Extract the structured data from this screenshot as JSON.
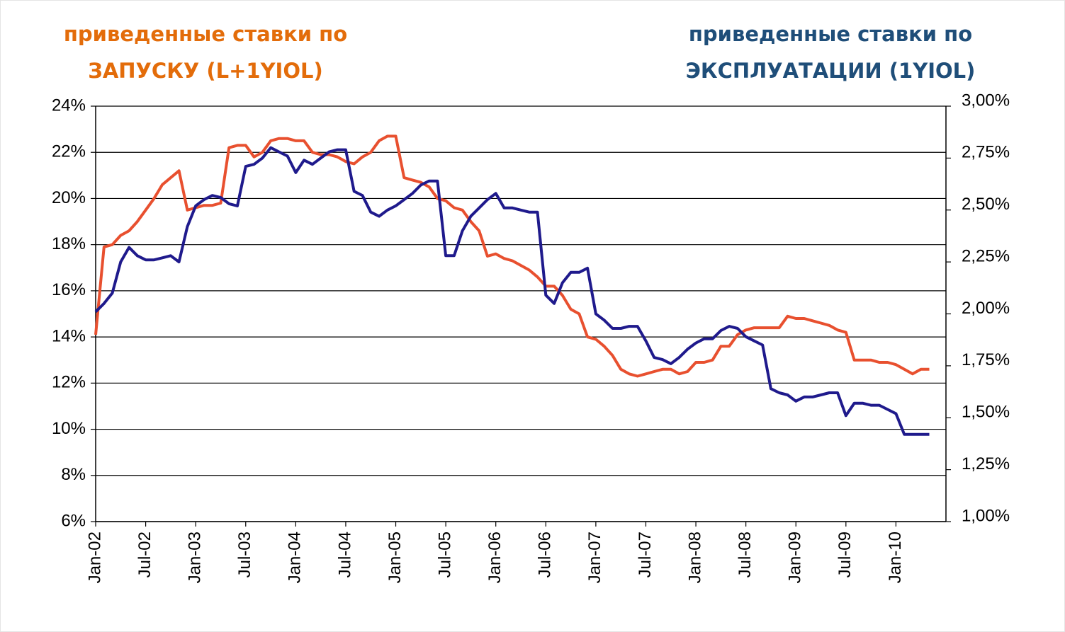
{
  "chart_data": {
    "type": "line",
    "x": [
      "2002-01",
      "2002-02",
      "2002-03",
      "2002-04",
      "2002-05",
      "2002-06",
      "2002-07",
      "2002-08",
      "2002-09",
      "2002-10",
      "2002-11",
      "2002-12",
      "2003-01",
      "2003-02",
      "2003-03",
      "2003-04",
      "2003-05",
      "2003-06",
      "2003-07",
      "2003-08",
      "2003-09",
      "2003-10",
      "2003-11",
      "2003-12",
      "2004-01",
      "2004-02",
      "2004-03",
      "2004-04",
      "2004-05",
      "2004-06",
      "2004-07",
      "2004-08",
      "2004-09",
      "2004-10",
      "2004-11",
      "2004-12",
      "2005-01",
      "2005-02",
      "2005-03",
      "2005-04",
      "2005-05",
      "2005-06",
      "2005-07",
      "2005-08",
      "2005-09",
      "2005-10",
      "2005-11",
      "2005-12",
      "2006-01",
      "2006-02",
      "2006-03",
      "2006-04",
      "2006-05",
      "2006-06",
      "2006-07",
      "2006-08",
      "2006-09",
      "2006-10",
      "2006-11",
      "2006-12",
      "2007-01",
      "2007-02",
      "2007-03",
      "2007-04",
      "2007-05",
      "2007-06",
      "2007-07",
      "2007-08",
      "2007-09",
      "2007-10",
      "2007-11",
      "2007-12",
      "2008-01",
      "2008-02",
      "2008-03",
      "2008-04",
      "2008-05",
      "2008-06",
      "2008-07",
      "2008-08",
      "2008-09",
      "2008-10",
      "2008-11",
      "2008-12",
      "2009-01",
      "2009-02",
      "2009-03",
      "2009-04",
      "2009-05",
      "2009-06",
      "2009-07",
      "2009-08",
      "2009-09",
      "2009-10",
      "2009-11",
      "2009-12",
      "2010-01",
      "2010-02",
      "2010-03",
      "2010-04",
      "2010-05"
    ],
    "series": [
      {
        "legend_lines": [
          "приведенные ставки по",
          "ЗАПУСКУ (L+1YIOL)"
        ],
        "color": "#e8502f",
        "title_color": "#e36c0a",
        "axis": "y",
        "values": [
          14.1,
          17.9,
          18.0,
          18.4,
          18.6,
          19.0,
          19.5,
          20.0,
          20.6,
          20.9,
          21.2,
          19.5,
          19.6,
          19.7,
          19.7,
          19.8,
          22.2,
          22.3,
          22.3,
          21.8,
          22.0,
          22.5,
          22.6,
          22.6,
          22.5,
          22.5,
          22.0,
          21.9,
          21.9,
          21.8,
          21.6,
          21.5,
          21.8,
          22.0,
          22.5,
          22.7,
          22.7,
          20.9,
          20.8,
          20.7,
          20.5,
          20.0,
          19.9,
          19.6,
          19.5,
          19.0,
          18.6,
          17.5,
          17.6,
          17.4,
          17.3,
          17.1,
          16.9,
          16.6,
          16.2,
          16.2,
          15.8,
          15.2,
          15.0,
          14.0,
          13.9,
          13.6,
          13.2,
          12.6,
          12.4,
          12.3,
          12.4,
          12.5,
          12.6,
          12.6,
          12.4,
          12.5,
          12.9,
          12.9,
          13.0,
          13.6,
          13.6,
          14.1,
          14.3,
          14.4,
          14.4,
          14.4,
          14.4,
          14.9,
          14.8,
          14.8,
          14.7,
          14.6,
          14.5,
          14.3,
          14.2,
          13.0,
          13.0,
          13.0,
          12.9,
          12.9,
          12.8,
          12.6,
          12.4,
          12.6,
          12.6
        ]
      },
      {
        "legend_lines": [
          "приведенные ставки по",
          "ЭКСПЛУАТАЦИИ (1YIOL)"
        ],
        "color": "#1f1a8c",
        "title_color": "#1f4e79",
        "axis": "y2",
        "values": [
          2.01,
          2.05,
          2.1,
          2.25,
          2.32,
          2.28,
          2.26,
          2.26,
          2.27,
          2.28,
          2.25,
          2.42,
          2.52,
          2.55,
          2.57,
          2.56,
          2.53,
          2.52,
          2.71,
          2.72,
          2.75,
          2.8,
          2.78,
          2.76,
          2.68,
          2.74,
          2.72,
          2.75,
          2.78,
          2.79,
          2.79,
          2.59,
          2.57,
          2.49,
          2.47,
          2.5,
          2.52,
          2.55,
          2.58,
          2.62,
          2.64,
          2.64,
          2.28,
          2.28,
          2.4,
          2.47,
          2.51,
          2.55,
          2.58,
          2.51,
          2.51,
          2.5,
          2.49,
          2.49,
          2.09,
          2.05,
          2.15,
          2.2,
          2.2,
          2.22,
          2.0,
          1.97,
          1.93,
          1.93,
          1.94,
          1.94,
          1.87,
          1.79,
          1.78,
          1.76,
          1.79,
          1.83,
          1.86,
          1.88,
          1.88,
          1.92,
          1.94,
          1.93,
          1.89,
          1.87,
          1.85,
          1.64,
          1.62,
          1.61,
          1.58,
          1.6,
          1.6,
          1.61,
          1.62,
          1.62,
          1.51,
          1.57,
          1.57,
          1.56,
          1.56,
          1.54,
          1.52,
          1.42,
          1.42,
          1.42,
          1.42
        ]
      }
    ],
    "xlim": [
      "2002-01",
      "2010-07"
    ],
    "xticks": [
      {
        "value": "2002-01",
        "label": "Jan-02"
      },
      {
        "value": "2002-07",
        "label": "Jul-02"
      },
      {
        "value": "2003-01",
        "label": "Jan-03"
      },
      {
        "value": "2003-07",
        "label": "Jul-03"
      },
      {
        "value": "2004-01",
        "label": "Jan-04"
      },
      {
        "value": "2004-07",
        "label": "Jul-04"
      },
      {
        "value": "2005-01",
        "label": "Jan-05"
      },
      {
        "value": "2005-07",
        "label": "Jul-05"
      },
      {
        "value": "2006-01",
        "label": "Jan-06"
      },
      {
        "value": "2006-07",
        "label": "Jul-06"
      },
      {
        "value": "2007-01",
        "label": "Jan-07"
      },
      {
        "value": "2007-07",
        "label": "Jul-07"
      },
      {
        "value": "2008-01",
        "label": "Jan-08"
      },
      {
        "value": "2008-07",
        "label": "Jul-08"
      },
      {
        "value": "2009-01",
        "label": "Jan-09"
      },
      {
        "value": "2009-07",
        "label": "Jul-09"
      },
      {
        "value": "2010-01",
        "label": "Jan-10"
      }
    ],
    "ylim": [
      6,
      24
    ],
    "yticks": [
      {
        "value": 6,
        "label": "6%"
      },
      {
        "value": 8,
        "label": "8%"
      },
      {
        "value": 10,
        "label": "10%"
      },
      {
        "value": 12,
        "label": "12%"
      },
      {
        "value": 14,
        "label": "14%"
      },
      {
        "value": 16,
        "label": "16%"
      },
      {
        "value": 18,
        "label": "18%"
      },
      {
        "value": 20,
        "label": "20%"
      },
      {
        "value": 22,
        "label": "22%"
      },
      {
        "value": 24,
        "label": "24%"
      }
    ],
    "y2lim": [
      1,
      3
    ],
    "y2ticks": [
      {
        "value": 1,
        "label": "1,00%"
      },
      {
        "value": 1.25,
        "label": "1,25%"
      },
      {
        "value": 1.5,
        "label": "1,50%"
      },
      {
        "value": 1.75,
        "label": "1,75%"
      },
      {
        "value": 2,
        "label": "2,00%"
      },
      {
        "value": 2.25,
        "label": "2,25%"
      },
      {
        "value": 2.5,
        "label": "2,50%"
      },
      {
        "value": 2.75,
        "label": "2,75%"
      },
      {
        "value": 3,
        "label": "3,00%"
      }
    ],
    "grid": true
  }
}
